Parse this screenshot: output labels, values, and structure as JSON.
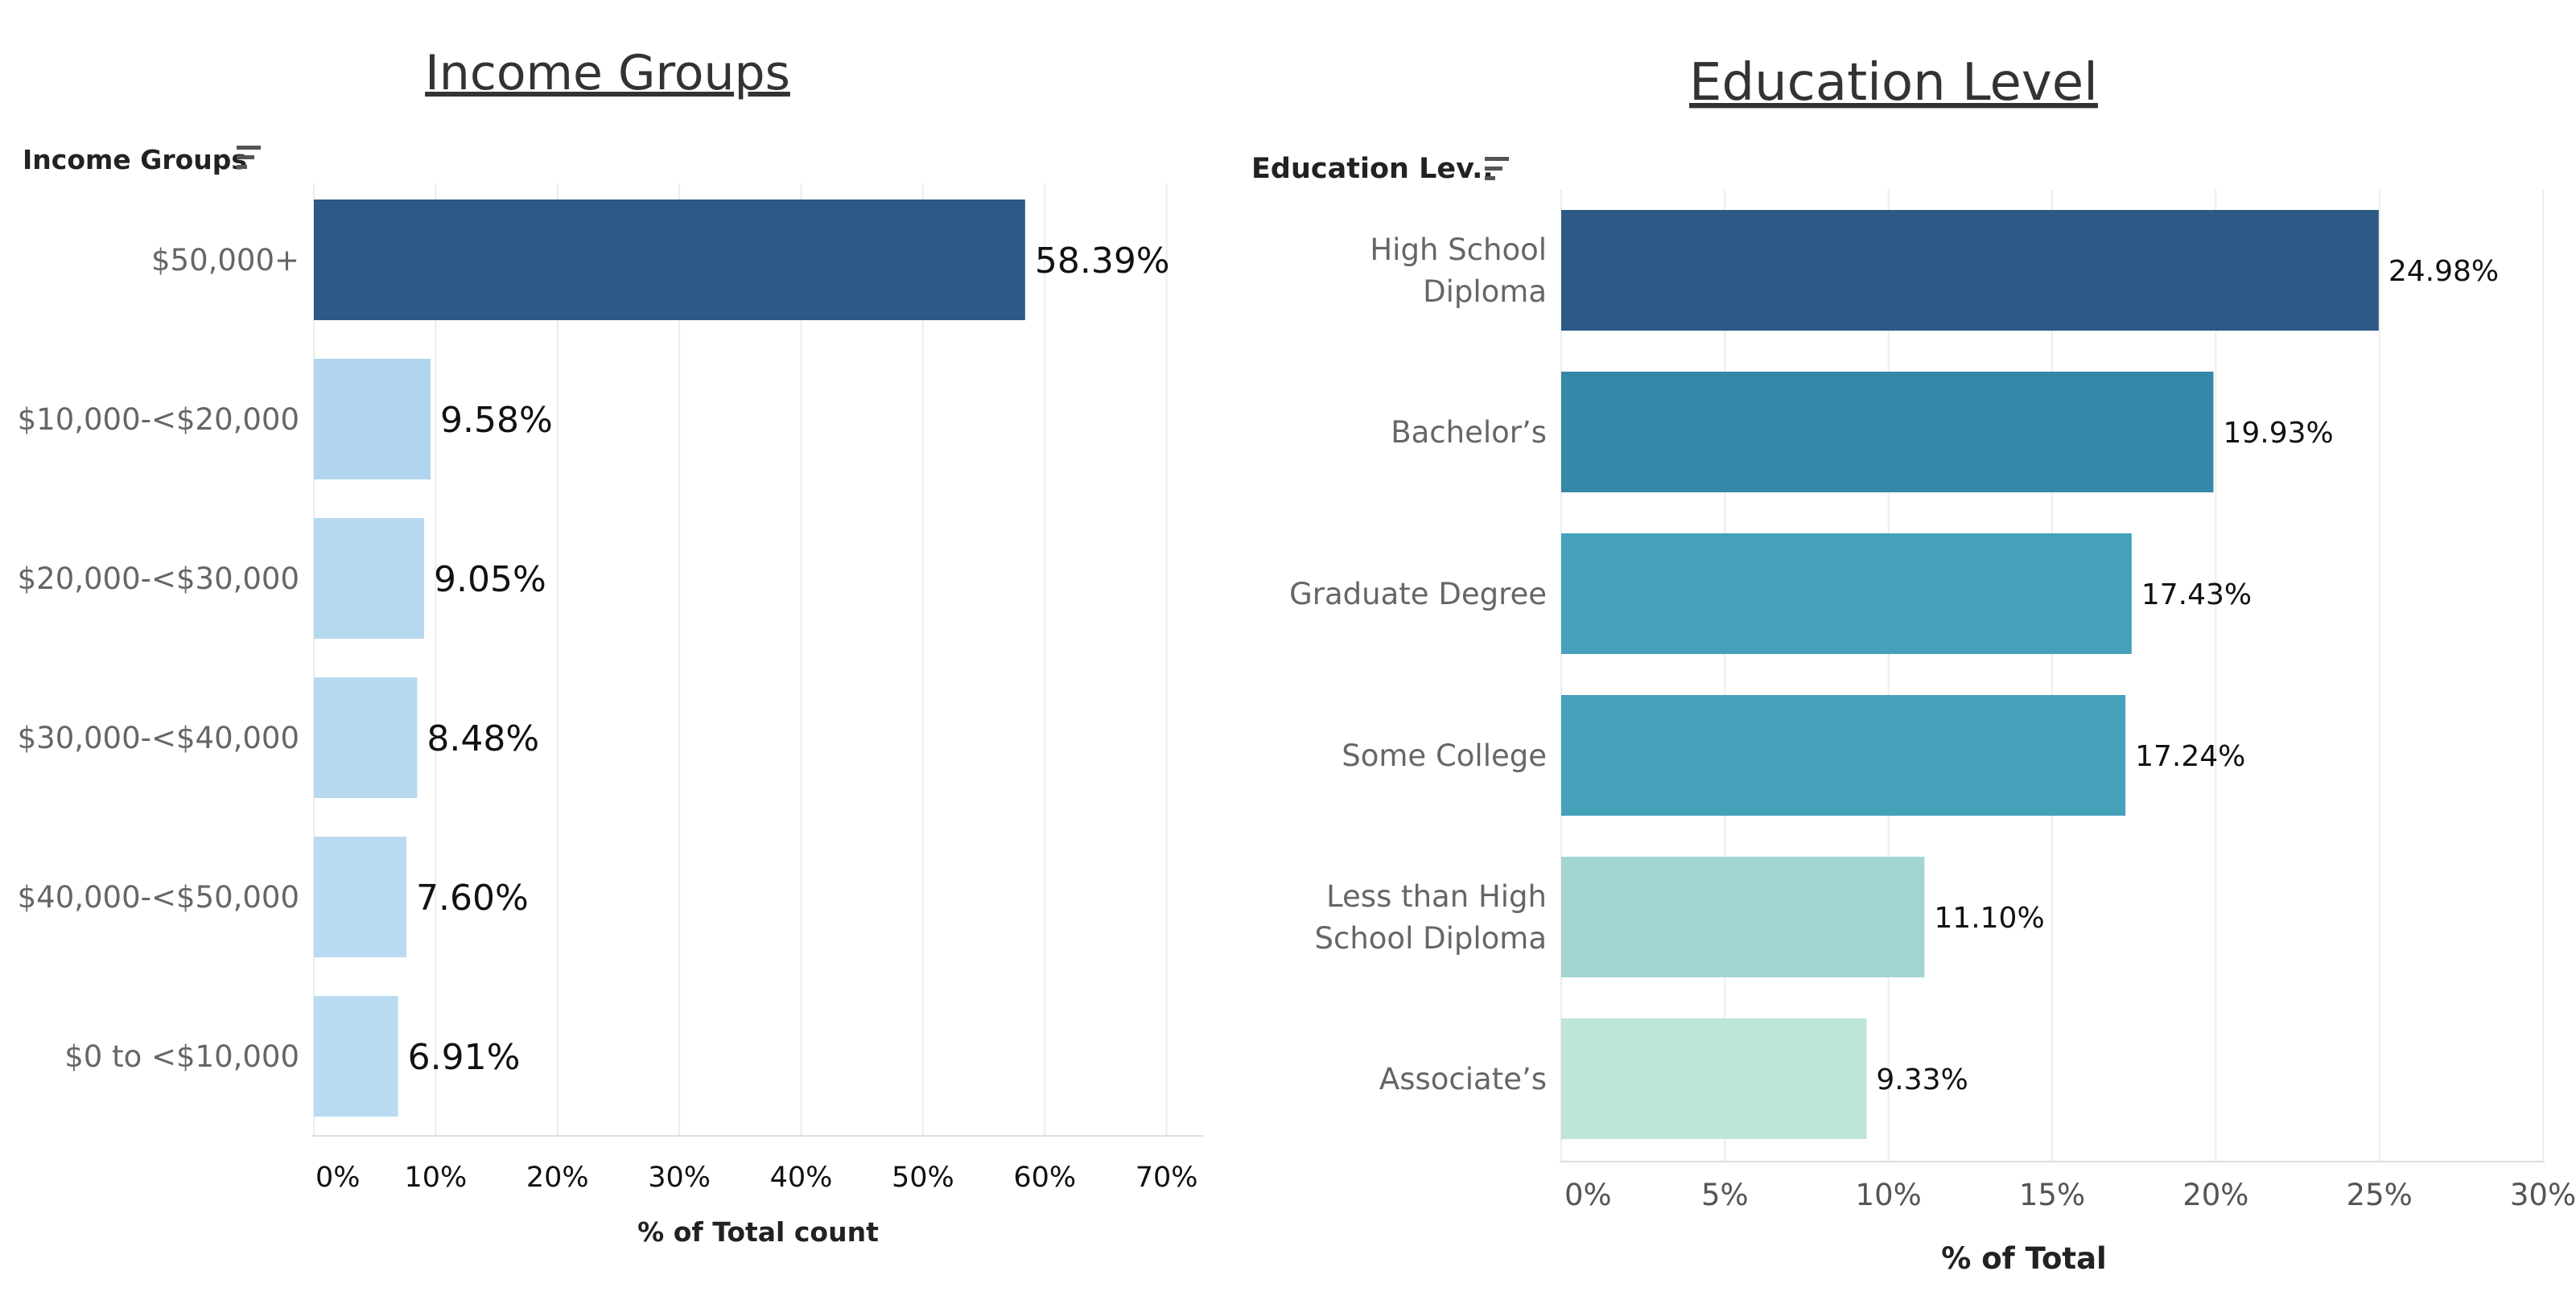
{
  "chart_data": [
    {
      "type": "bar",
      "orientation": "horizontal",
      "title": "Income Groups",
      "row_header": "Income Groups",
      "row_header_icon": "sort-icon",
      "categories": [
        "$50,000+",
        "$10,000-<$20,000",
        "$20,000-<$30,000",
        "$30,000-<$40,000",
        "$40,000-<$50,000",
        "$0 to <$10,000"
      ],
      "values": [
        58.39,
        9.58,
        9.05,
        8.48,
        7.6,
        6.91
      ],
      "value_labels": [
        "58.39%",
        "9.58%",
        "9.05%",
        "8.48%",
        "7.60%",
        "6.91%"
      ],
      "colors": [
        "#2c5985",
        "#b1d5ee",
        "#b6d9f0",
        "#b6d9f0",
        "#b8dbf1",
        "#b8dbf1"
      ],
      "xlabel": "% of Total count",
      "xlim": [
        0,
        73
      ],
      "xticks": [
        0,
        10,
        20,
        30,
        40,
        50,
        60,
        70
      ],
      "xtick_labels": [
        "0%",
        "10%",
        "20%",
        "30%",
        "40%",
        "50%",
        "60%",
        "70%"
      ],
      "grid": true
    },
    {
      "type": "bar",
      "orientation": "horizontal",
      "title": "Education Level",
      "row_header": "Education Lev..",
      "row_header_icon": "sort-icon",
      "categories": [
        [
          "High School",
          "Diploma"
        ],
        [
          "Bachelor’s"
        ],
        [
          "Graduate Degree"
        ],
        [
          "Some College"
        ],
        [
          "Less than High",
          "School Diploma"
        ],
        [
          "Associate’s"
        ]
      ],
      "values": [
        24.98,
        19.93,
        17.43,
        17.24,
        11.1,
        9.33
      ],
      "value_labels": [
        "24.98%",
        "19.93%",
        "17.43%",
        "17.24%",
        "11.10%",
        "9.33%"
      ],
      "colors": [
        "#2c5985",
        "#3588a8",
        "#45a0b9",
        "#45a0b9",
        "#a3d6d3",
        "#bde5d8"
      ],
      "xlabel": "% of Total",
      "xlim": [
        0,
        30
      ],
      "xticks": [
        0,
        5,
        10,
        15,
        20,
        25,
        30
      ],
      "xtick_labels": [
        "0%",
        "5%",
        "10%",
        "15%",
        "20%",
        "25%",
        "30%"
      ],
      "grid": true
    }
  ]
}
